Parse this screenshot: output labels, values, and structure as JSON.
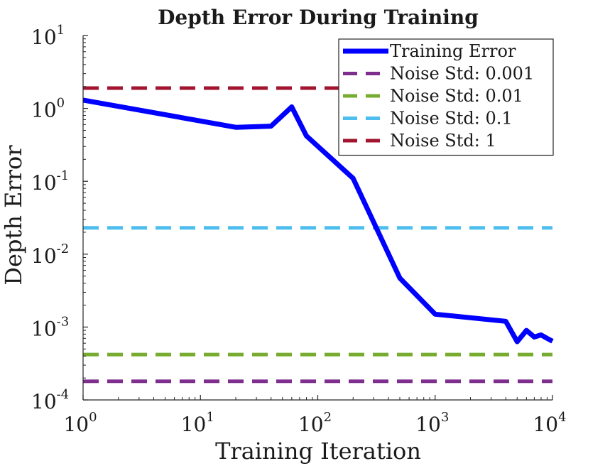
{
  "chart_data": {
    "type": "line",
    "title": "Depth Error During Training",
    "xlabel": "Training Iteration",
    "ylabel": "Depth Error",
    "xscale": "log",
    "yscale": "log",
    "xlim": [
      1,
      10000
    ],
    "ylim": [
      0.0001,
      10
    ],
    "x_ticks": [
      {
        "value": 1,
        "base": "10",
        "exp": "0"
      },
      {
        "value": 10,
        "base": "10",
        "exp": "1"
      },
      {
        "value": 100,
        "base": "10",
        "exp": "2"
      },
      {
        "value": 1000,
        "base": "10",
        "exp": "3"
      },
      {
        "value": 10000,
        "base": "10",
        "exp": "4"
      }
    ],
    "y_ticks": [
      {
        "value": 10,
        "base": "10",
        "exp": "1"
      },
      {
        "value": 1,
        "base": "10",
        "exp": "0"
      },
      {
        "value": 0.1,
        "base": "10",
        "exp": "-1"
      },
      {
        "value": 0.01,
        "base": "10",
        "exp": "-2"
      },
      {
        "value": 0.001,
        "base": "10",
        "exp": "-3"
      },
      {
        "value": 0.0001,
        "base": "10",
        "exp": "-4"
      }
    ],
    "legend_position": "top-right",
    "series": [
      {
        "name": "Training Error",
        "style": "solid",
        "color": "#0000ff",
        "x": [
          1,
          20,
          40,
          60,
          80,
          200,
          500,
          1000,
          4000,
          5000,
          6000,
          7000,
          8000,
          9000,
          10000
        ],
        "y": [
          1.3,
          0.55,
          0.57,
          1.05,
          0.42,
          0.11,
          0.0047,
          0.0015,
          0.0012,
          0.00063,
          0.0009,
          0.00073,
          0.00078,
          0.0007,
          0.00064
        ]
      },
      {
        "name": "Noise Std: 0.001",
        "style": "dashed",
        "color": "#7e2f8e",
        "x": [
          1,
          10000
        ],
        "y": [
          0.00018,
          0.00018
        ]
      },
      {
        "name": "Noise Std: 0.01",
        "style": "dashed",
        "color": "#77ac30",
        "x": [
          1,
          10000
        ],
        "y": [
          0.00042,
          0.00042
        ]
      },
      {
        "name": "Noise Std: 0.1",
        "style": "dashed",
        "color": "#4dbeee",
        "x": [
          1,
          10000
        ],
        "y": [
          0.023,
          0.023
        ]
      },
      {
        "name": "Noise Std: 1",
        "style": "dashed",
        "color": "#a2142f",
        "x": [
          1,
          10000
        ],
        "y": [
          1.9,
          1.9
        ]
      }
    ]
  }
}
